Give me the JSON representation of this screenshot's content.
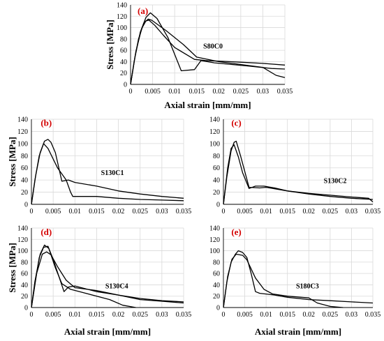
{
  "chart_data": [
    {
      "type": "line",
      "panel_label": "(a)",
      "specimen_label": "S80C0",
      "ylabel": "Stress [MPa]",
      "xlabel": "Axial strain [mm/mm]",
      "xlim": [
        0,
        0.035
      ],
      "ylim": [
        0,
        140
      ],
      "x_ticks": [
        "0",
        "0.005",
        "0.01",
        "0.015",
        "0.02",
        "0.025",
        "0.03",
        "0.035"
      ],
      "y_ticks": [
        "0",
        "20",
        "40",
        "60",
        "80",
        "100",
        "120",
        "140"
      ],
      "grid": true,
      "series": [
        {
          "x": [
            0,
            0.0008,
            0.0018,
            0.003,
            0.004,
            0.0048,
            0.008,
            0.012,
            0.015,
            0.02,
            0.025,
            0.03,
            0.033,
            0.035
          ],
          "y": [
            0,
            40,
            80,
            108,
            115,
            113,
            95,
            70,
            48,
            40,
            35,
            30,
            16,
            12
          ]
        },
        {
          "x": [
            0,
            0.001,
            0.0022,
            0.0035,
            0.0045,
            0.006,
            0.0085,
            0.0115,
            0.0145,
            0.016,
            0.019,
            0.023,
            0.027,
            0.032,
            0.035
          ],
          "y": [
            0,
            48,
            92,
            118,
            126,
            116,
            82,
            24,
            26,
            42,
            38,
            35,
            32,
            28,
            27
          ]
        },
        {
          "x": [
            0,
            0.0012,
            0.0025,
            0.0035,
            0.0042,
            0.0055,
            0.0075,
            0.01,
            0.0145,
            0.017,
            0.02,
            0.025,
            0.03,
            0.035
          ],
          "y": [
            0,
            58,
            98,
            112,
            113,
            104,
            86,
            65,
            44,
            42,
            41,
            39,
            37,
            34
          ]
        }
      ]
    },
    {
      "type": "line",
      "panel_label": "(b)",
      "specimen_label": "S130C1",
      "ylabel": "Stress [MPa]",
      "xlabel": "",
      "xlim": [
        0,
        0.035
      ],
      "ylim": [
        0,
        140
      ],
      "x_ticks": [
        "0",
        "0.005",
        "0.01",
        "0.015",
        "0.02",
        "0.025",
        "0.03",
        "0.035"
      ],
      "y_ticks": [
        "0",
        "20",
        "40",
        "60",
        "80",
        "100",
        "120",
        "140"
      ],
      "grid": true,
      "series": [
        {
          "x": [
            0,
            0.0008,
            0.0018,
            0.003,
            0.0038,
            0.0045,
            0.0055,
            0.007,
            0.0085,
            0.01,
            0.015,
            0.02,
            0.025,
            0.03,
            0.035
          ],
          "y": [
            0,
            40,
            80,
            104,
            107,
            102,
            85,
            38,
            40,
            36,
            30,
            22,
            17,
            13,
            10
          ]
        },
        {
          "x": [
            0,
            0.001,
            0.002,
            0.0028,
            0.0038,
            0.006,
            0.008,
            0.009,
            0.0095,
            0.015,
            0.02,
            0.025,
            0.03,
            0.035
          ],
          "y": [
            0,
            48,
            85,
            100,
            92,
            60,
            40,
            20,
            13,
            13,
            10,
            8,
            7,
            6
          ]
        }
      ]
    },
    {
      "type": "line",
      "panel_label": "(c)",
      "specimen_label": "S130C2",
      "ylabel": "",
      "xlabel": "",
      "xlim": [
        0,
        0.035
      ],
      "ylim": [
        0,
        140
      ],
      "x_ticks": [
        "0",
        "0.005",
        "0.01",
        "0.015",
        "0.02",
        "0.025",
        "0.03",
        "0.035"
      ],
      "y_ticks": [
        "0",
        "20",
        "40",
        "60",
        "80",
        "100",
        "120",
        "140"
      ],
      "grid": true,
      "series": [
        {
          "x": [
            0,
            0.0008,
            0.0018,
            0.0025,
            0.003,
            0.004,
            0.006,
            0.0085,
            0.01,
            0.015,
            0.02,
            0.025,
            0.03,
            0.034,
            0.035
          ],
          "y": [
            0,
            45,
            88,
            102,
            104,
            80,
            28,
            27,
            28,
            22,
            18,
            15,
            12,
            10,
            4
          ]
        },
        {
          "x": [
            0,
            0.001,
            0.0018,
            0.0025,
            0.0035,
            0.0045,
            0.006,
            0.0075,
            0.0095,
            0.012,
            0.015,
            0.02,
            0.025,
            0.03,
            0.035
          ],
          "y": [
            0,
            60,
            92,
            98,
            78,
            52,
            26,
            30,
            30,
            27,
            22,
            17,
            13,
            10,
            8
          ]
        }
      ]
    },
    {
      "type": "line",
      "panel_label": "(d)",
      "specimen_label": "S130C4",
      "ylabel": "Stress [MPa]",
      "xlabel": "Axial strain [mm/mm]",
      "xlim": [
        0,
        0.035
      ],
      "ylim": [
        0,
        140
      ],
      "x_ticks": [
        "0",
        "0.005",
        "0.01",
        "0.015",
        "0.02",
        "0.025",
        "0.03",
        "0.035"
      ],
      "y_ticks": [
        "0",
        "20",
        "40",
        "60",
        "80",
        "100",
        "120",
        "140"
      ],
      "grid": true,
      "series": [
        {
          "x": [
            0,
            0.0008,
            0.0018,
            0.0028,
            0.0038,
            0.005,
            0.0075,
            0.0085,
            0.01,
            0.015,
            0.02,
            0.025,
            0.03,
            0.035
          ],
          "y": [
            0,
            42,
            88,
            106,
            108,
            85,
            28,
            36,
            38,
            28,
            22,
            16,
            12,
            10
          ]
        },
        {
          "x": [
            0,
            0.0008,
            0.002,
            0.003,
            0.004,
            0.0055,
            0.007,
            0.009,
            0.012,
            0.018,
            0.021,
            0.024
          ],
          "y": [
            0,
            46,
            94,
            110,
            104,
            70,
            42,
            32,
            26,
            14,
            4,
            0
          ]
        },
        {
          "x": [
            0,
            0.0012,
            0.0025,
            0.0035,
            0.0045,
            0.006,
            0.008,
            0.01,
            0.015,
            0.02,
            0.025,
            0.03,
            0.035
          ],
          "y": [
            0,
            60,
            94,
            98,
            93,
            72,
            48,
            35,
            30,
            22,
            14,
            11,
            8
          ]
        }
      ]
    },
    {
      "type": "line",
      "panel_label": "(e)",
      "specimen_label": "S180C3",
      "ylabel": "",
      "xlabel": "Axial strain [mm/mm]",
      "xlim": [
        0,
        0.035
      ],
      "ylim": [
        0,
        140
      ],
      "x_ticks": [
        "0",
        "0.005",
        "0.01",
        "0.015",
        "0.02",
        "0.025",
        "0.03",
        "0.035"
      ],
      "y_ticks": [
        "0",
        "20",
        "40",
        "60",
        "80",
        "100",
        "120",
        "140"
      ],
      "grid": true,
      "series": [
        {
          "x": [
            0,
            0.0008,
            0.0018,
            0.0028,
            0.0035,
            0.0045,
            0.0055,
            0.0065,
            0.0075,
            0.0085,
            0.012,
            0.015,
            0.02,
            0.025,
            0.03,
            0.035
          ],
          "y": [
            0,
            45,
            80,
            94,
            100,
            97,
            88,
            60,
            28,
            25,
            22,
            18,
            14,
            12,
            10,
            8
          ]
        },
        {
          "x": [
            0,
            0.001,
            0.002,
            0.003,
            0.0045,
            0.0055,
            0.0075,
            0.0095,
            0.0115,
            0.015,
            0.02,
            0.022,
            0.025,
            0.028
          ],
          "y": [
            0,
            55,
            85,
            94,
            92,
            84,
            52,
            32,
            24,
            20,
            17,
            8,
            2,
            0
          ]
        }
      ]
    }
  ]
}
